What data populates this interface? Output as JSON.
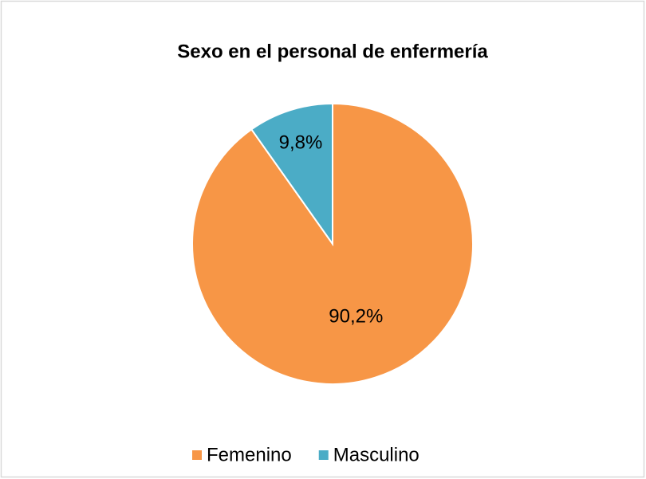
{
  "chart_data": {
    "type": "pie",
    "title": "Sexo en el personal de enfermería",
    "categories": [
      "Femenino",
      "Masculino"
    ],
    "values": [
      90.2,
      9.8
    ],
    "value_labels": [
      "90,2%",
      "9,8%"
    ],
    "colors": [
      "#f79646",
      "#4bacc6"
    ],
    "legend": "bottom"
  }
}
